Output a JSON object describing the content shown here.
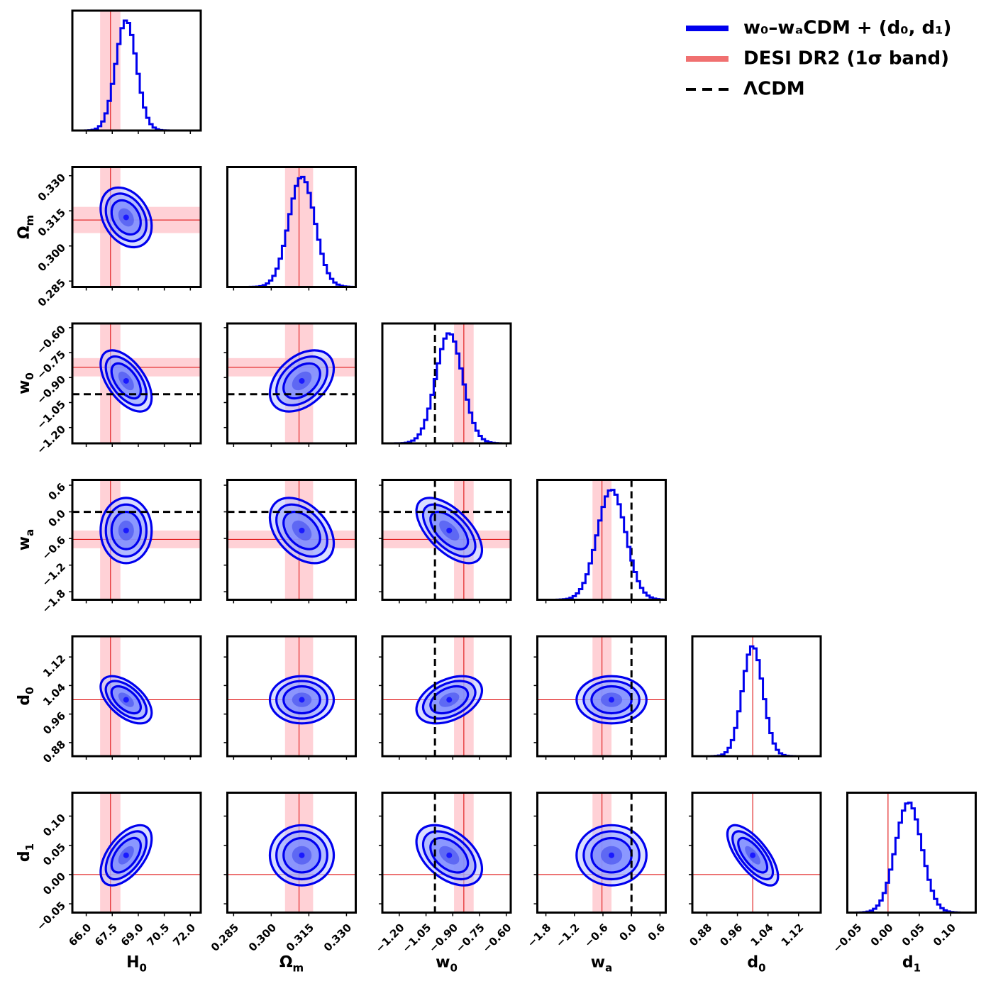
{
  "chart_data": {
    "type": "corner",
    "parameters": [
      {
        "key": "H0",
        "label": "H",
        "sub": "0",
        "range": [
          65.2,
          72.6
        ],
        "ticks": [
          66.0,
          67.5,
          69.0,
          70.5,
          72.0
        ],
        "tick_labels": [
          "66.0",
          "67.5",
          "69.0",
          "70.5",
          "72.0"
        ],
        "mean": 68.3,
        "sd": 0.6,
        "ref": 67.4,
        "band": [
          66.8,
          67.97
        ],
        "lcdm": null
      },
      {
        "key": "Om",
        "label": "Ω",
        "sub": "m",
        "range": [
          0.2825,
          0.3337
        ],
        "ticks": [
          0.285,
          0.3,
          0.315,
          0.33
        ],
        "tick_labels": [
          "0.285",
          "0.300",
          "0.315",
          "0.330"
        ],
        "mean": 0.3122,
        "sd": 0.0052,
        "ref": 0.3111,
        "band": [
          0.3055,
          0.3167
        ],
        "lcdm": null
      },
      {
        "key": "w0",
        "label": "w",
        "sub": "0",
        "range": [
          -1.295,
          -0.575
        ],
        "ticks": [
          -1.2,
          -1.05,
          -0.9,
          -0.75,
          -0.6
        ],
        "tick_labels": [
          "−1.20",
          "−1.05",
          "−0.90",
          "−0.75",
          "−0.60"
        ],
        "mean": -0.92,
        "sd": 0.075,
        "ref": -0.838,
        "band": [
          -0.893,
          -0.783
        ],
        "lcdm": -1.0
      },
      {
        "key": "wa",
        "label": "w",
        "sub": "a",
        "range": [
          -1.98,
          0.72
        ],
        "ticks": [
          -1.8,
          -1.2,
          -0.6,
          0.0,
          0.6
        ],
        "tick_labels": [
          "−1.8",
          "−1.2",
          "−0.6",
          "0.0",
          "0.6"
        ],
        "mean": -0.42,
        "sd": 0.3,
        "ref": -0.62,
        "band": [
          -0.82,
          -0.42
        ],
        "lcdm": 0.0
      },
      {
        "key": "d0",
        "label": "d",
        "sub": "0",
        "range": [
          0.842,
          1.178
        ],
        "ticks": [
          0.88,
          0.96,
          1.04,
          1.12
        ],
        "tick_labels": [
          "0.88",
          "0.96",
          "1.04",
          "1.12"
        ],
        "mean": 1.0,
        "sd": 0.027,
        "ref": 1.0,
        "band": null,
        "lcdm": null
      },
      {
        "key": "d1",
        "label": "d",
        "sub": "1",
        "range": [
          -0.065,
          0.14
        ],
        "ticks": [
          -0.05,
          0.0,
          0.05,
          0.1
        ],
        "tick_labels": [
          "−0.05",
          "0.00",
          "0.05",
          "0.10"
        ],
        "mean": 0.033,
        "sd": 0.021,
        "ref": 0.0,
        "band": null,
        "lcdm": null
      }
    ],
    "correlations": {
      "1-0": -0.3,
      "2-0": -0.55,
      "2-1": 0.4,
      "3-0": 0.0,
      "3-1": -0.4,
      "3-2": -0.6,
      "4-0": -0.55,
      "4-1": 0.0,
      "4-2": 0.4,
      "4-3": 0.0,
      "5-0": 0.55,
      "5-1": 0.0,
      "5-2": -0.45,
      "5-3": 0.0,
      "5-4": -0.7
    },
    "legend": [
      {
        "label": "w₀–wₐCDM + (d₀, d₁)",
        "style": "solid",
        "color": "#0000ee"
      },
      {
        "label": "DESI DR2 (1σ band)",
        "style": "solid",
        "color": "#f07070"
      },
      {
        "label": "ΛCDM",
        "style": "dashed",
        "color": "#000000"
      }
    ],
    "colors": {
      "posterior": "#0000ee",
      "desi_line": "#dd0000",
      "desi_band": "#ffb3bb",
      "lcdm": "#000000"
    }
  }
}
